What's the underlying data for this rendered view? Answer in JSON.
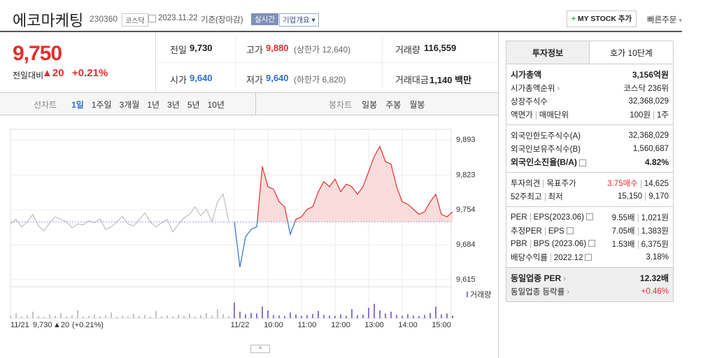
{
  "header": {
    "name": "에코마케팅",
    "code": "230360",
    "market": "코스닥",
    "date": "2023.11.22",
    "basis": "기준(장마감)",
    "realtime": "실시간",
    "overview": "기업개요",
    "mystock": "MY STOCK 추가",
    "quick_order": "빠른주문"
  },
  "quote": {
    "price": "9,750",
    "change_label": "전일대비",
    "change": "▲20",
    "change_pct": "+0.21%",
    "items": [
      {
        "label": "전일",
        "value": "9,730"
      },
      {
        "label": "고가",
        "value": "9,880",
        "sub": "(상한가 12,640)"
      },
      {
        "label": "거래량",
        "value": "116,559"
      },
      {
        "label": "시가",
        "value": "9,640"
      },
      {
        "label": "저가",
        "value": "9,640",
        "sub": "(하한가 6,820)"
      },
      {
        "label": "거래대금",
        "value": "1,140 백만"
      }
    ]
  },
  "tabs": {
    "line_label": "선차트",
    "line": [
      "1일",
      "1주일",
      "3개월",
      "1년",
      "3년",
      "5년",
      "10년"
    ],
    "candle_label": "봉차트",
    "candle": [
      "일봉",
      "주봉",
      "월봉"
    ]
  },
  "chart_footer": {
    "date": "11/21",
    "close": "9,730",
    "change": "▲20",
    "change_pct": "(+0.21%)"
  },
  "chart_data": [
    {
      "type": "line",
      "categories": [
        null,
        null,
        null,
        null,
        null,
        null,
        null,
        null,
        null,
        null,
        null,
        null,
        null,
        null,
        null,
        null,
        null,
        null,
        null,
        null,
        null,
        null,
        null,
        null,
        null,
        null,
        null,
        null,
        null,
        null,
        null,
        null,
        null,
        null,
        null,
        null,
        null,
        null,
        null,
        null,
        "11/22",
        null,
        null,
        null,
        null,
        null,
        "10:00",
        null,
        null,
        null,
        null,
        null,
        "11:00",
        null,
        null,
        null,
        null,
        null,
        "12:00",
        null,
        null,
        null,
        null,
        null,
        "13:00",
        null,
        null,
        null,
        null,
        null,
        "14:00",
        null,
        null,
        null,
        null,
        null,
        "15:00",
        null,
        null,
        null
      ],
      "series": [
        {
          "color": "#b4b4b4",
          "values": [
            9726,
            9735,
            9720,
            9730,
            9745,
            9722,
            9712,
            9728,
            9740,
            9735,
            9730,
            9718,
            9726,
            9724,
            9732,
            9728,
            9736,
            9715,
            9720,
            9730,
            9741,
            9726,
            9722,
            9734,
            9748,
            9730,
            9720,
            9728,
            9735,
            9710,
            9725,
            9738,
            9745,
            9760,
            9742,
            9755,
            9730,
            9770,
            9785,
            9730,
            null,
            null,
            null,
            null,
            null,
            null,
            null,
            null,
            null,
            null,
            null,
            null,
            null,
            null,
            null,
            null,
            null,
            null,
            null,
            null,
            null,
            null,
            null,
            null,
            null,
            null,
            null,
            null,
            null,
            null,
            null,
            null,
            null,
            null,
            null,
            null,
            null,
            null,
            null,
            null
          ]
        },
        {
          "color": "#e52e2e",
          "down_color": "#2f6fd1",
          "fill": "#fbdcdc",
          "values": [
            null,
            null,
            null,
            null,
            null,
            null,
            null,
            null,
            null,
            null,
            null,
            null,
            null,
            null,
            null,
            null,
            null,
            null,
            null,
            null,
            null,
            null,
            null,
            null,
            null,
            null,
            null,
            null,
            null,
            null,
            null,
            null,
            null,
            null,
            null,
            null,
            null,
            null,
            null,
            null,
            9730,
            9640,
            9700,
            9715,
            9720,
            9840,
            9800,
            9795,
            9770,
            9760,
            9705,
            9735,
            9740,
            9755,
            9760,
            9790,
            9810,
            9800,
            9815,
            9790,
            9805,
            9800,
            9785,
            9800,
            9830,
            9860,
            9880,
            9850,
            9845,
            9800,
            9770,
            9765,
            9755,
            9745,
            9750,
            9770,
            9785,
            9745,
            9740,
            9750
          ]
        }
      ],
      "baseline": 9730,
      "ylim": [
        9601,
        9914
      ],
      "yticks": [
        {
          "value": 9893,
          "label": "9,893"
        },
        {
          "value": 9823,
          "label": "9,823"
        },
        {
          "value": 9754,
          "label": "9,754"
        },
        {
          "value": 9684,
          "label": "9,684"
        },
        {
          "value": 9615,
          "label": "9,615"
        }
      ],
      "grid": true
    },
    {
      "type": "bar",
      "series": [
        {
          "color": "#c4c4c4",
          "values": [
            10,
            18,
            6,
            12,
            25,
            8,
            5,
            14,
            9,
            20,
            7,
            11,
            30,
            6,
            9,
            15,
            8,
            12,
            22,
            5,
            10,
            7,
            16,
            9,
            13,
            6,
            28,
            8,
            11,
            7,
            14,
            9,
            18,
            6,
            12,
            20,
            10,
            35,
            15,
            8,
            null,
            null,
            null,
            null,
            null,
            null,
            null,
            null,
            null,
            null,
            null,
            null,
            null,
            null,
            null,
            null,
            null,
            null,
            null,
            null,
            null,
            null,
            null,
            null,
            null,
            null,
            null,
            null,
            null,
            null,
            null,
            null,
            null,
            null,
            null,
            null,
            null,
            null,
            null,
            null
          ]
        },
        {
          "name": "거래량",
          "color": "#8a74c9",
          "values": [
            null,
            null,
            null,
            null,
            null,
            null,
            null,
            null,
            null,
            null,
            null,
            null,
            null,
            null,
            null,
            null,
            null,
            null,
            null,
            null,
            null,
            null,
            null,
            null,
            null,
            null,
            null,
            null,
            null,
            null,
            null,
            null,
            null,
            null,
            null,
            null,
            null,
            null,
            null,
            null,
            60,
            25,
            15,
            20,
            18,
            45,
            30,
            12,
            10,
            8,
            22,
            14,
            9,
            11,
            16,
            28,
            12,
            10,
            8,
            14,
            9,
            35,
            11,
            13,
            40,
            55,
            30,
            18,
            25,
            12,
            9,
            15,
            10,
            8,
            12,
            20,
            45,
            14,
            18,
            10
          ]
        }
      ],
      "ylim": [
        0,
        100
      ]
    }
  ],
  "info": {
    "tabs": [
      "투자정보",
      "호가 10단계"
    ],
    "sections": [
      {
        "rows": [
          {
            "labels": [
              "시가총액"
            ],
            "values": [
              "3,156억원"
            ],
            "bold": true
          },
          {
            "labels": [
              "시가총액순위"
            ],
            "values": [
              "코스닥 236위"
            ],
            "link": true
          },
          {
            "labels": [
              "상장주식수"
            ],
            "values": [
              "32,368,029"
            ]
          },
          {
            "labels": [
              "액면가",
              "매매단위"
            ],
            "values": [
              "100원",
              "1주"
            ]
          }
        ]
      },
      {
        "rows": [
          {
            "labels": [
              "외국인한도주식수(A)"
            ],
            "values": [
              "32,368,029"
            ]
          },
          {
            "labels": [
              "외국인보유주식수(B)"
            ],
            "values": [
              "1,560,687"
            ]
          },
          {
            "labels": [
              "외국인소진율(B/A)"
            ],
            "values": [
              "4.82%"
            ],
            "bold": true,
            "help": true
          }
        ]
      },
      {
        "rows": [
          {
            "labels": [
              "투자의견",
              "목표주가"
            ],
            "values": [
              "3.75매수",
              "14,625"
            ],
            "color": "#e52e2e"
          },
          {
            "labels": [
              "52주최고",
              "최저"
            ],
            "values": [
              "15,150",
              "9,170"
            ]
          }
        ]
      },
      {
        "rows": [
          {
            "labels": [
              "PER",
              "EPS(2023.06)"
            ],
            "values": [
              "9.55배",
              "1,021원"
            ],
            "help": true
          },
          {
            "labels": [
              "추정PER",
              "EPS"
            ],
            "values": [
              "7.05배",
              "1,383원"
            ],
            "help": true
          },
          {
            "labels": [
              "PBR",
              "BPS (2023.06)"
            ],
            "values": [
              "1.53배",
              "6,375원"
            ],
            "help": true
          },
          {
            "labels": [
              "배당수익률",
              "2022.12"
            ],
            "values": [
              "3.18%"
            ],
            "help": true
          }
        ]
      },
      {
        "rows": [
          {
            "labels": [
              "동일업종 PER"
            ],
            "values": [
              "12.32배"
            ],
            "bold": true,
            "link": true
          },
          {
            "labels": [
              "동일업종 등락률"
            ],
            "values": [
              "+0.46%"
            ],
            "link": true,
            "color": "#e52e2e"
          }
        ]
      }
    ]
  }
}
